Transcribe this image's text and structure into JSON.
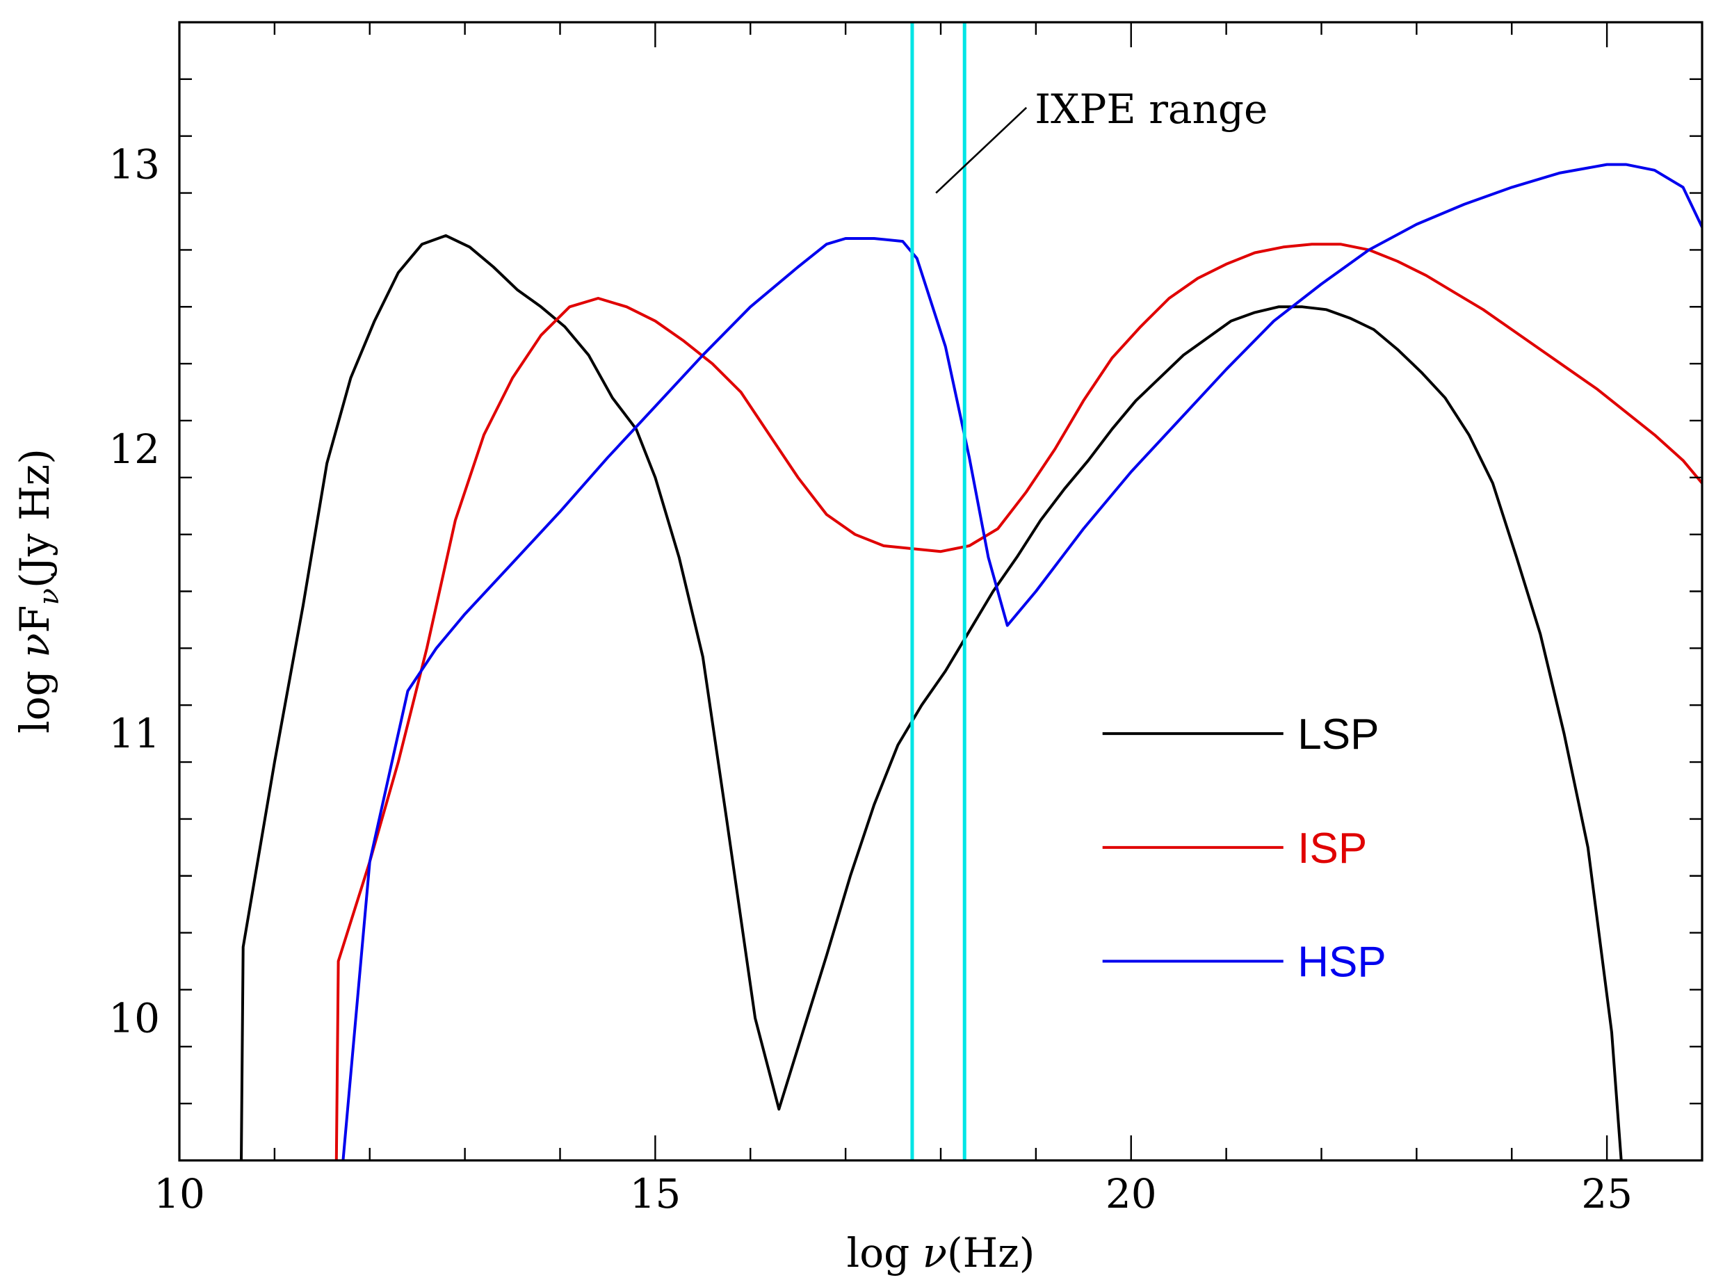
{
  "chart_data": {
    "type": "line",
    "title": "",
    "xlabel": "log ν(Hz)",
    "ylabel": "log νFν(Jy Hz)",
    "xlim": [
      10,
      26
    ],
    "ylim": [
      9.5,
      13.5
    ],
    "x_ticks": [
      10,
      15,
      20,
      25
    ],
    "y_ticks": [
      10,
      11,
      12,
      13
    ],
    "x_minor_step": 1,
    "y_minor_step": 0.2,
    "legend_position": "center-right",
    "series": [
      {
        "name": "LSP",
        "color": "#000000",
        "points": [
          [
            10.65,
            9.5
          ],
          [
            10.67,
            10.25
          ],
          [
            11.0,
            10.9
          ],
          [
            11.3,
            11.45
          ],
          [
            11.55,
            11.95
          ],
          [
            11.8,
            12.25
          ],
          [
            12.05,
            12.45
          ],
          [
            12.3,
            12.62
          ],
          [
            12.55,
            12.72
          ],
          [
            12.8,
            12.75
          ],
          [
            13.05,
            12.71
          ],
          [
            13.3,
            12.64
          ],
          [
            13.55,
            12.56
          ],
          [
            13.8,
            12.5
          ],
          [
            14.05,
            12.43
          ],
          [
            14.3,
            12.33
          ],
          [
            14.55,
            12.18
          ],
          [
            14.8,
            12.07
          ],
          [
            15.0,
            11.9
          ],
          [
            15.25,
            11.62
          ],
          [
            15.5,
            11.27
          ],
          [
            15.75,
            10.7
          ],
          [
            16.05,
            10.0
          ],
          [
            16.3,
            9.68
          ],
          [
            16.55,
            9.95
          ],
          [
            16.8,
            10.22
          ],
          [
            17.05,
            10.5
          ],
          [
            17.3,
            10.75
          ],
          [
            17.55,
            10.96
          ],
          [
            17.8,
            11.1
          ],
          [
            18.05,
            11.22
          ],
          [
            18.3,
            11.36
          ],
          [
            18.55,
            11.5
          ],
          [
            18.8,
            11.62
          ],
          [
            19.05,
            11.75
          ],
          [
            19.3,
            11.86
          ],
          [
            19.55,
            11.96
          ],
          [
            19.8,
            12.07
          ],
          [
            20.05,
            12.17
          ],
          [
            20.3,
            12.25
          ],
          [
            20.55,
            12.33
          ],
          [
            20.8,
            12.39
          ],
          [
            21.05,
            12.45
          ],
          [
            21.3,
            12.48
          ],
          [
            21.55,
            12.5
          ],
          [
            21.8,
            12.5
          ],
          [
            22.05,
            12.49
          ],
          [
            22.3,
            12.46
          ],
          [
            22.55,
            12.42
          ],
          [
            22.8,
            12.35
          ],
          [
            23.05,
            12.27
          ],
          [
            23.3,
            12.18
          ],
          [
            23.55,
            12.05
          ],
          [
            23.8,
            11.88
          ],
          [
            24.05,
            11.62
          ],
          [
            24.3,
            11.35
          ],
          [
            24.55,
            11.0
          ],
          [
            24.8,
            10.6
          ],
          [
            25.05,
            9.95
          ],
          [
            25.15,
            9.5
          ]
        ]
      },
      {
        "name": "ISP",
        "color": "#e00000",
        "points": [
          [
            11.65,
            9.5
          ],
          [
            11.67,
            10.2
          ],
          [
            12.0,
            10.55
          ],
          [
            12.3,
            10.9
          ],
          [
            12.6,
            11.3
          ],
          [
            12.9,
            11.75
          ],
          [
            13.2,
            12.05
          ],
          [
            13.5,
            12.25
          ],
          [
            13.8,
            12.4
          ],
          [
            14.1,
            12.5
          ],
          [
            14.4,
            12.53
          ],
          [
            14.7,
            12.5
          ],
          [
            15.0,
            12.45
          ],
          [
            15.3,
            12.38
          ],
          [
            15.6,
            12.3
          ],
          [
            15.9,
            12.2
          ],
          [
            16.2,
            12.05
          ],
          [
            16.5,
            11.9
          ],
          [
            16.8,
            11.77
          ],
          [
            17.1,
            11.7
          ],
          [
            17.4,
            11.66
          ],
          [
            17.7,
            11.65
          ],
          [
            18.0,
            11.64
          ],
          [
            18.3,
            11.66
          ],
          [
            18.6,
            11.72
          ],
          [
            18.9,
            11.85
          ],
          [
            19.2,
            12.0
          ],
          [
            19.5,
            12.17
          ],
          [
            19.8,
            12.32
          ],
          [
            20.1,
            12.43
          ],
          [
            20.4,
            12.53
          ],
          [
            20.7,
            12.6
          ],
          [
            21.0,
            12.65
          ],
          [
            21.3,
            12.69
          ],
          [
            21.6,
            12.71
          ],
          [
            21.9,
            12.72
          ],
          [
            22.2,
            12.72
          ],
          [
            22.5,
            12.7
          ],
          [
            22.8,
            12.66
          ],
          [
            23.1,
            12.61
          ],
          [
            23.4,
            12.55
          ],
          [
            23.7,
            12.49
          ],
          [
            24.0,
            12.42
          ],
          [
            24.3,
            12.35
          ],
          [
            24.6,
            12.28
          ],
          [
            24.9,
            12.21
          ],
          [
            25.2,
            12.13
          ],
          [
            25.5,
            12.05
          ],
          [
            25.8,
            11.96
          ],
          [
            26.0,
            11.88
          ]
        ]
      },
      {
        "name": "HSP",
        "color": "#0000ee",
        "points": [
          [
            11.72,
            9.5
          ],
          [
            12.0,
            10.55
          ],
          [
            12.4,
            11.15
          ],
          [
            12.7,
            11.3
          ],
          [
            13.0,
            11.42
          ],
          [
            13.5,
            11.6
          ],
          [
            14.0,
            11.78
          ],
          [
            14.5,
            11.97
          ],
          [
            15.0,
            12.15
          ],
          [
            15.5,
            12.33
          ],
          [
            16.0,
            12.5
          ],
          [
            16.5,
            12.64
          ],
          [
            16.8,
            12.72
          ],
          [
            17.0,
            12.74
          ],
          [
            17.3,
            12.74
          ],
          [
            17.6,
            12.73
          ],
          [
            17.75,
            12.67
          ],
          [
            18.05,
            12.36
          ],
          [
            18.3,
            11.97
          ],
          [
            18.5,
            11.62
          ],
          [
            18.7,
            11.38
          ],
          [
            19.0,
            11.5
          ],
          [
            19.5,
            11.72
          ],
          [
            20.0,
            11.92
          ],
          [
            20.5,
            12.1
          ],
          [
            21.0,
            12.28
          ],
          [
            21.5,
            12.45
          ],
          [
            22.0,
            12.58
          ],
          [
            22.5,
            12.7
          ],
          [
            23.0,
            12.79
          ],
          [
            23.5,
            12.86
          ],
          [
            24.0,
            12.92
          ],
          [
            24.5,
            12.97
          ],
          [
            25.0,
            13.0
          ],
          [
            25.2,
            13.0
          ],
          [
            25.5,
            12.98
          ],
          [
            25.8,
            12.92
          ],
          [
            26.0,
            12.78
          ]
        ]
      }
    ],
    "vertical_lines": [
      {
        "x": 17.7,
        "color": "#00e5e5"
      },
      {
        "x": 18.25,
        "color": "#00e5e5"
      }
    ],
    "annotations": [
      {
        "text": "IXPE range",
        "pointer_from": [
          17.95,
          12.9
        ],
        "pointer_to": [
          18.9,
          13.2
        ]
      }
    ]
  }
}
